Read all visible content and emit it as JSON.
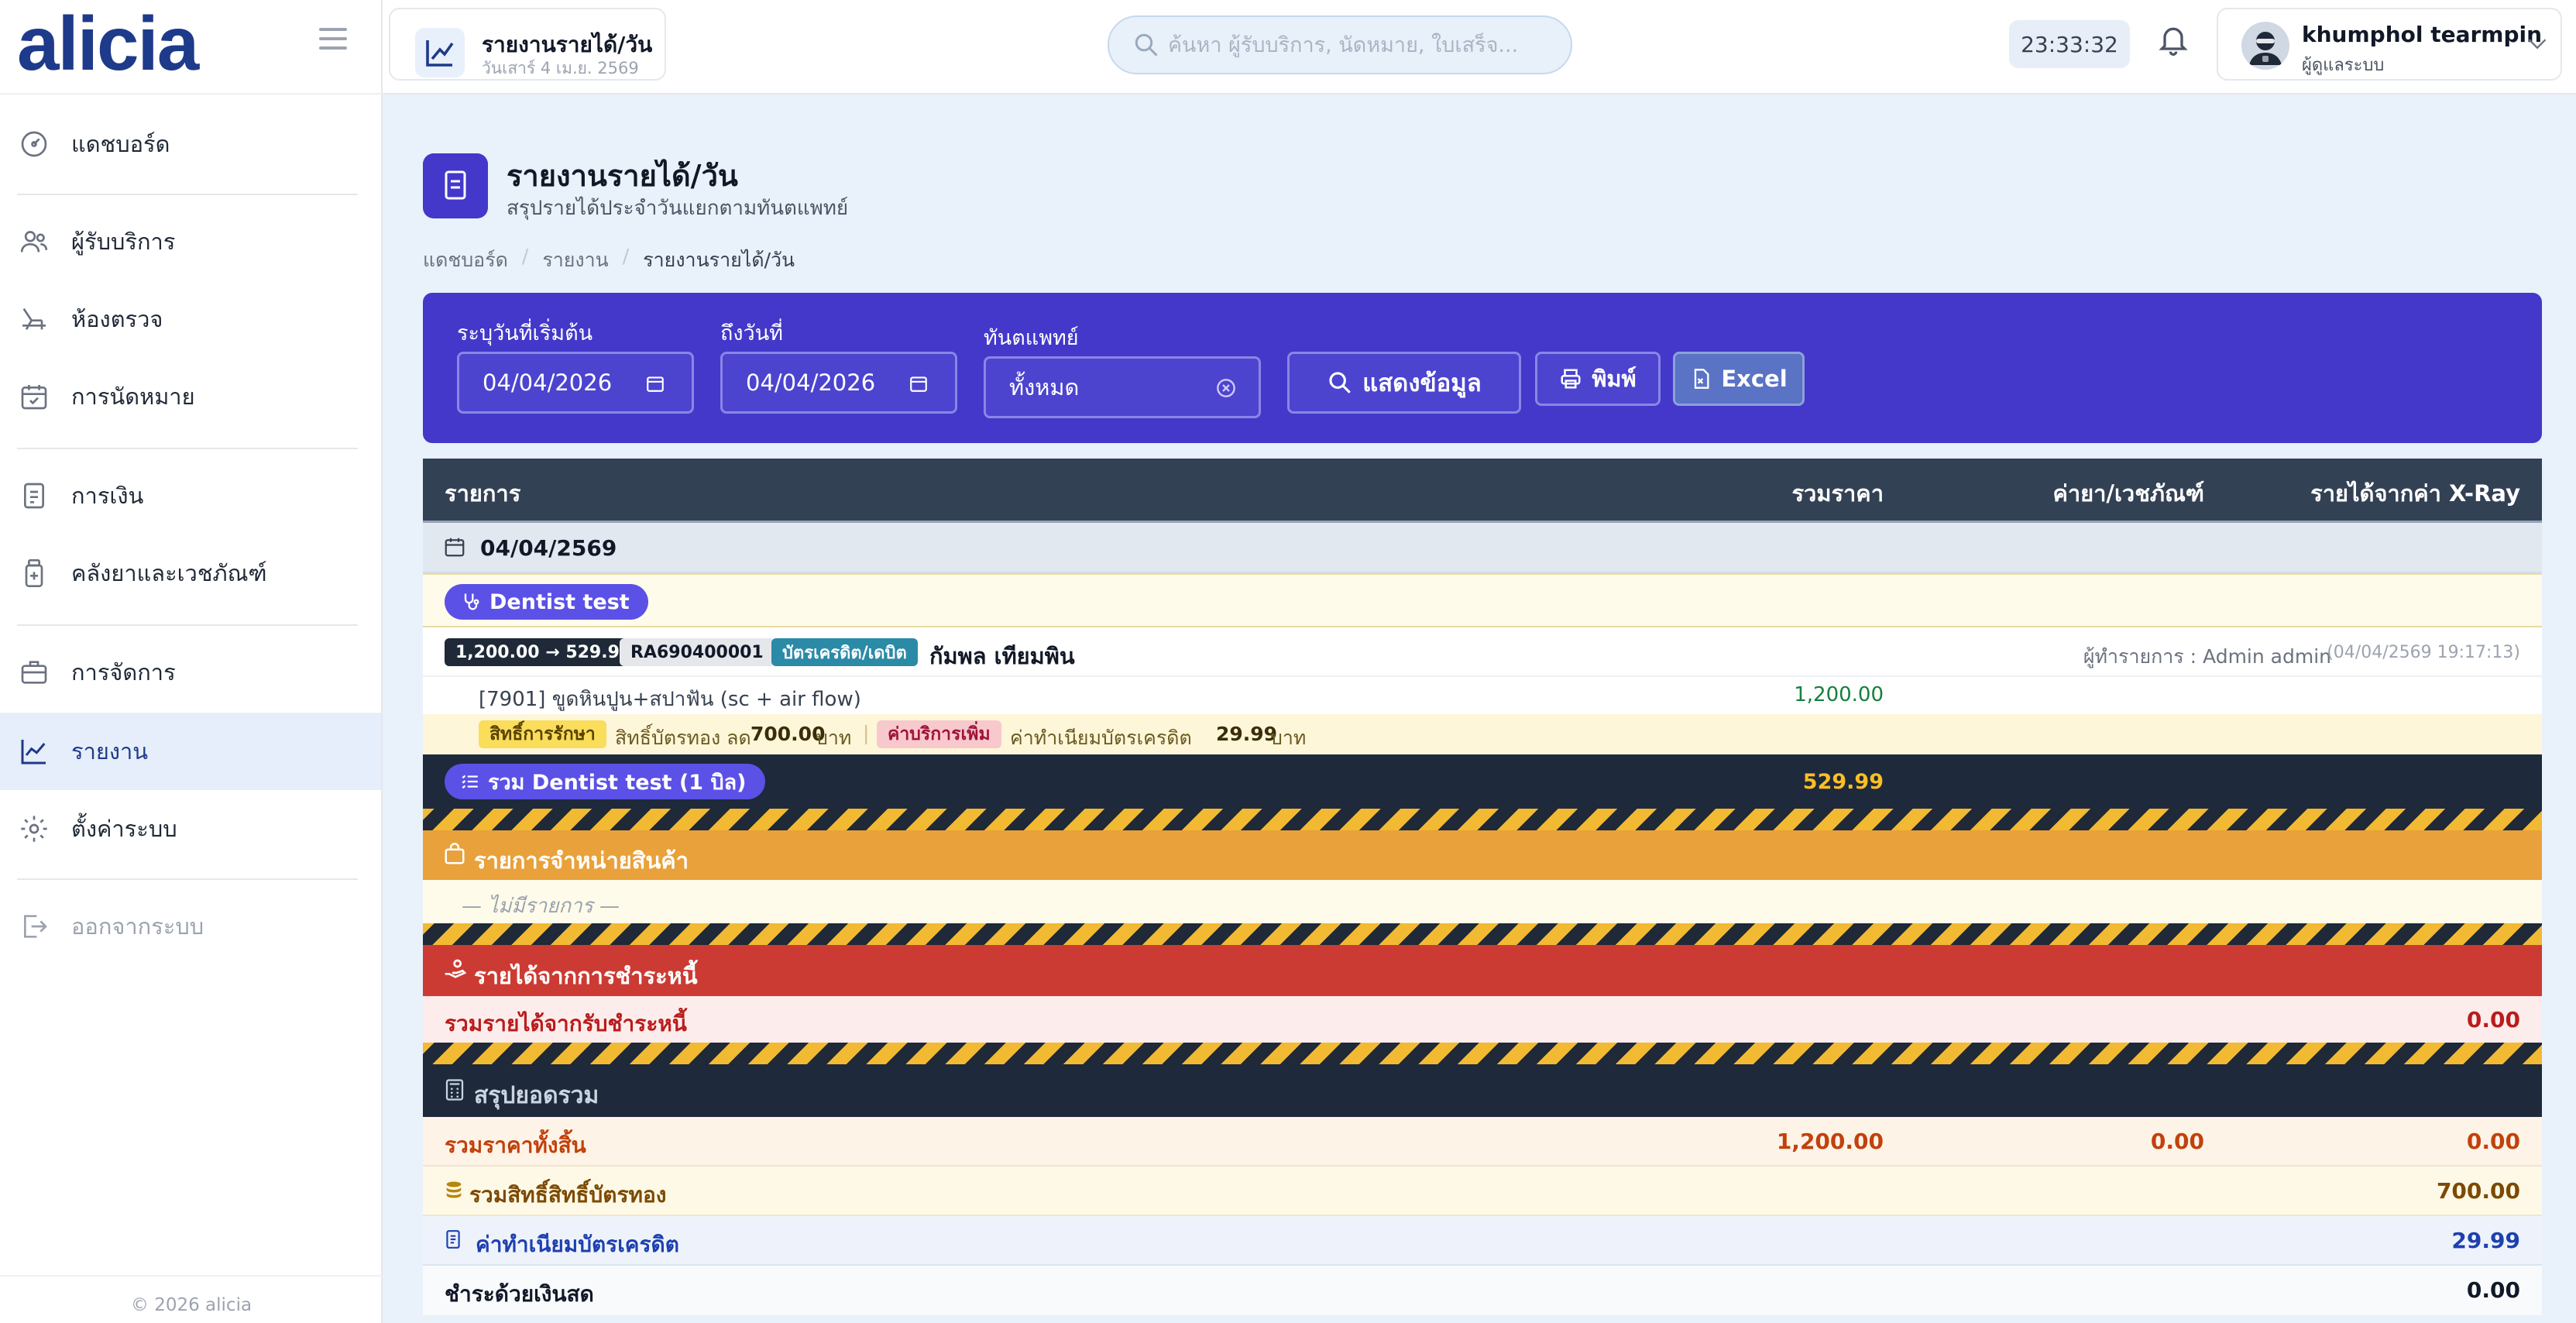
{
  "app": {
    "logo": "alicia",
    "copyright": "© 2026 alicia"
  },
  "sidebar": {
    "items": [
      {
        "label": "แดชบอร์ด",
        "icon": "dashboard-gauge-icon"
      },
      {
        "label": "ผู้รับบริการ",
        "icon": "users-icon"
      },
      {
        "label": "ห้องตรวจ",
        "icon": "dental-chair-icon"
      },
      {
        "label": "การนัดหมาย",
        "icon": "calendar-check-icon"
      },
      {
        "label": "การเงิน",
        "icon": "document-icon"
      },
      {
        "label": "คลังยาและเวชภัณฑ์",
        "icon": "medicine-bottle-icon"
      },
      {
        "label": "การจัดการ",
        "icon": "briefcase-icon"
      },
      {
        "label": "รายงาน",
        "icon": "chart-line-icon"
      },
      {
        "label": "ตั้งค่าระบบ",
        "icon": "gear-icon"
      },
      {
        "label": "ออกจากระบบ",
        "icon": "logout-icon"
      }
    ]
  },
  "topbar": {
    "page_chip_title": "รายงานรายได้/วัน",
    "page_chip_date": "วันเสาร์ 4 เม.ย. 2569",
    "search_placeholder": "ค้นหา ผู้รับบริการ, นัดหมาย, ใบเสร็จ...",
    "clock": "23:33:32",
    "user_name": "khumphol tearmpin",
    "user_role": "ผู้ดูแลระบบ"
  },
  "page": {
    "title": "รายงานรายได้/วัน",
    "subtitle": "สรุปรายได้ประจำวันแยกตามทันตแพทย์",
    "breadcrumb": [
      "แดชบอร์ด",
      "รายงาน",
      "รายงานรายได้/วัน"
    ]
  },
  "filters": {
    "start_label": "ระบุวันที่เริ่มต้น",
    "start_value": "04/04/2026",
    "end_label": "ถึงวันที่",
    "end_value": "04/04/2026",
    "dentist_label": "ทันตแพทย์",
    "dentist_value": "ทั้งหมด",
    "show_button": "แสดงข้อมูล",
    "print_button": "พิมพ์",
    "excel_button": "Excel"
  },
  "table": {
    "headers": [
      "รายการ",
      "รวมราคา",
      "ค่ายา/เวชภัณฑ์",
      "รายได้จากค่า X-Ray"
    ],
    "date": "04/04/2569",
    "dentist": "Dentist test",
    "bill": {
      "amount_tag": "1,200.00 → 529.99",
      "receipt_no": "RA690400001",
      "payment_tag": "บัตรเครดิต/เดบิต",
      "patient": "กัมพล เทียมพิน",
      "recorder": "ผู้ทำรายการ : Admin admin",
      "timestamp": "(04/04/2569 19:17:13)"
    },
    "item": {
      "name": "[7901] ขูดหินปูน+สปาฟัน (sc + air flow)",
      "price": "1,200.00"
    },
    "notes": {
      "right_tag": "สิทธิ์การรักษา",
      "right_text": "สิทธิ์บัตรทอง ลด",
      "right_amount": "700.00",
      "unit": "บาท",
      "extra_tag": "ค่าบริการเพิ่ม",
      "extra_text": "ค่าทำเนียมบัตรเครดิต",
      "extra_amount": "29.99"
    },
    "dentist_total_label": "รวม Dentist test (1 บิล)",
    "dentist_total": "529.99",
    "product_section": "รายการจำหน่ายสินค้า",
    "product_empty": "— ไม่มีรายการ —",
    "debt_section": "รายได้จากการชำระหนี้",
    "debt_total_label": "รวมรายได้จากรับชำระหนี้",
    "debt_total": "0.00",
    "summary_section": "สรุปยอดรวม",
    "summary": {
      "grand_label": "รวมราคาทั้งสิ้น",
      "grand": [
        "1,200.00",
        "0.00",
        "0.00"
      ],
      "gold_label": "รวมสิทธิ์สิทธิ์บัตรทอง",
      "gold": "700.00",
      "fee_label": "ค่าทำเนียมบัตรเครดิต",
      "fee": "29.99",
      "cash_label": "ชำระด้วยเงินสด",
      "cash": "0.00"
    }
  },
  "colors": {
    "primary": "#4338ca",
    "header_dark": "#334155",
    "orange": "#e9a13b",
    "red": "#cc3b33",
    "navy": "#1e3a8a"
  }
}
